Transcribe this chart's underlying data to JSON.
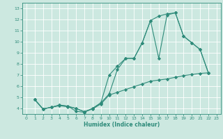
{
  "xlabel": "Humidex (Indice chaleur)",
  "bg_color": "#cce8e0",
  "grid_color": "#ffffff",
  "line_color": "#2e8b7a",
  "xlim": [
    -0.5,
    23.5
  ],
  "ylim": [
    3.5,
    13.5
  ],
  "xticks": [
    0,
    1,
    2,
    3,
    4,
    5,
    6,
    7,
    8,
    9,
    10,
    11,
    12,
    13,
    14,
    15,
    16,
    17,
    18,
    19,
    20,
    21,
    22,
    23
  ],
  "yticks": [
    4,
    5,
    6,
    7,
    8,
    9,
    10,
    11,
    12,
    13
  ],
  "line1_x": [
    1,
    2,
    3,
    4,
    5,
    6,
    7,
    8,
    9,
    10,
    11,
    12,
    13,
    14,
    15,
    16,
    17,
    18,
    19,
    20,
    21,
    22
  ],
  "line1_y": [
    4.8,
    3.95,
    4.1,
    4.3,
    4.2,
    3.75,
    3.65,
    4.0,
    4.5,
    7.0,
    7.8,
    8.5,
    8.5,
    9.9,
    11.9,
    8.5,
    12.4,
    12.6,
    10.5,
    9.9,
    9.3,
    7.2
  ],
  "line2_x": [
    1,
    2,
    3,
    4,
    5,
    6,
    7,
    8,
    9,
    10,
    11,
    12,
    13,
    14,
    15,
    16,
    17,
    18,
    19,
    20,
    21,
    22
  ],
  "line2_y": [
    4.8,
    3.95,
    4.1,
    4.25,
    4.15,
    4.0,
    3.7,
    3.95,
    4.4,
    5.2,
    5.45,
    5.7,
    5.95,
    6.2,
    6.45,
    6.55,
    6.65,
    6.8,
    6.95,
    7.05,
    7.15,
    7.2
  ],
  "line3_x": [
    1,
    2,
    3,
    4,
    5,
    6,
    7,
    8,
    9,
    10,
    11,
    12,
    13,
    14,
    15,
    16,
    17,
    18,
    19,
    20,
    21,
    22
  ],
  "line3_y": [
    4.8,
    3.95,
    4.1,
    4.3,
    4.2,
    4.0,
    3.7,
    4.0,
    4.5,
    5.3,
    7.5,
    8.5,
    8.5,
    9.9,
    11.9,
    12.3,
    12.5,
    12.6,
    10.5,
    9.9,
    9.3,
    7.2
  ]
}
